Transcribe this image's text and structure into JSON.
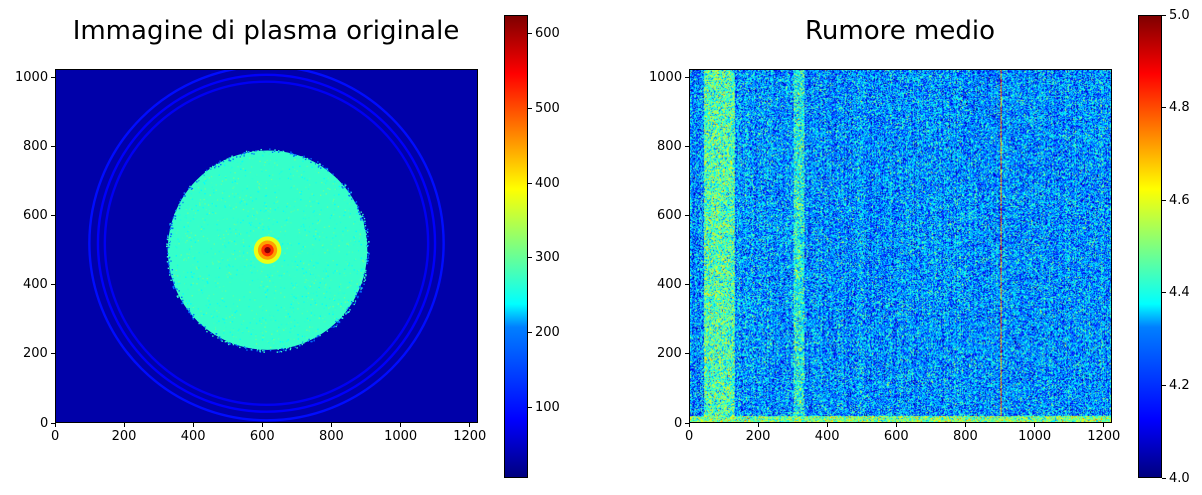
{
  "chart_data": [
    {
      "type": "heatmap",
      "title": "Immagine di plasma originale",
      "xlabel": "",
      "ylabel": "",
      "xlim": [
        0,
        1224
      ],
      "ylim": [
        0,
        1024
      ],
      "x_ticks": [
        0,
        200,
        400,
        600,
        800,
        1000,
        1200
      ],
      "y_ticks": [
        0,
        200,
        400,
        600,
        800,
        1000
      ],
      "colormap": "jet",
      "colorbar": {
        "min": 5,
        "max": 625,
        "ticks": [
          100,
          200,
          300,
          400,
          500,
          600
        ]
      },
      "features": {
        "background_value": 30,
        "disk": {
          "center_x": 615,
          "center_y": 500,
          "radius": 290,
          "value": 270
        },
        "hot_spot": {
          "center_x": 615,
          "center_y": 500,
          "peak_value": 620
        },
        "rings": [
          {
            "center_x": 612,
            "center_y": 520,
            "radius": 515,
            "value": 90
          },
          {
            "center_x": 612,
            "center_y": 520,
            "radius": 490,
            "value": 80
          },
          {
            "center_x": 612,
            "center_y": 520,
            "radius": 470,
            "value": 75
          }
        ]
      }
    },
    {
      "type": "heatmap",
      "title": "Rumore medio",
      "xlabel": "",
      "ylabel": "",
      "xlim": [
        0,
        1224
      ],
      "ylim": [
        0,
        1024
      ],
      "x_ticks": [
        0,
        200,
        400,
        600,
        800,
        1000,
        1200
      ],
      "y_ticks": [
        0,
        200,
        400,
        600,
        800,
        1000
      ],
      "colormap": "jet",
      "colorbar": {
        "min": 4.0,
        "max": 5.0,
        "ticks": [
          "4.0",
          "4.2",
          "4.4",
          "4.6",
          "4.8",
          "5.0"
        ]
      },
      "features": {
        "noise_mean": 4.27,
        "bright_columns": [
          {
            "x_range": [
              40,
              130
            ],
            "value": 4.45
          },
          {
            "x_range": [
              300,
              330
            ],
            "value": 4.4
          },
          {
            "x_range": [
              900,
              905
            ],
            "value": 4.75
          }
        ],
        "bright_bottom_rows": {
          "y_range": [
            0,
            15
          ],
          "value": 4.5
        }
      }
    }
  ]
}
